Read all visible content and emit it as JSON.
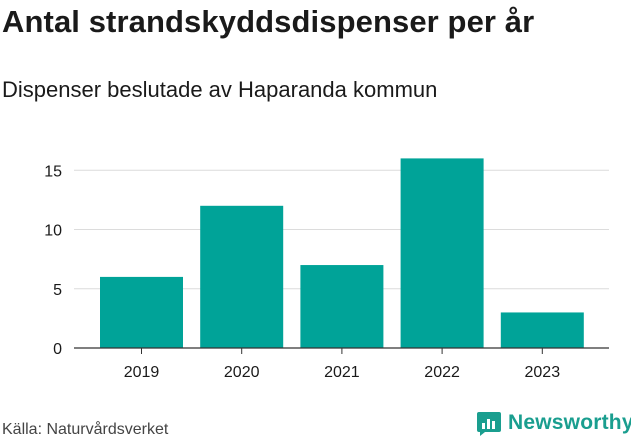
{
  "title": "Antal strandskyddsdispenser per år",
  "subtitle": "Dispenser beslutade av Haparanda kommun",
  "source": "Källa: Naturvårdsverket",
  "brand": "Newsworthy",
  "bar_color": "#00a398",
  "brand_color": "#1a9e8f",
  "chart_data": {
    "type": "bar",
    "categories": [
      "2019",
      "2020",
      "2021",
      "2022",
      "2023"
    ],
    "values": [
      6,
      12,
      7,
      16,
      3
    ],
    "title": "Antal strandskyddsdispenser per år",
    "xlabel": "",
    "ylabel": "",
    "ylim": [
      0,
      17
    ],
    "yticks": [
      0,
      5,
      10,
      15
    ],
    "grid": true
  }
}
